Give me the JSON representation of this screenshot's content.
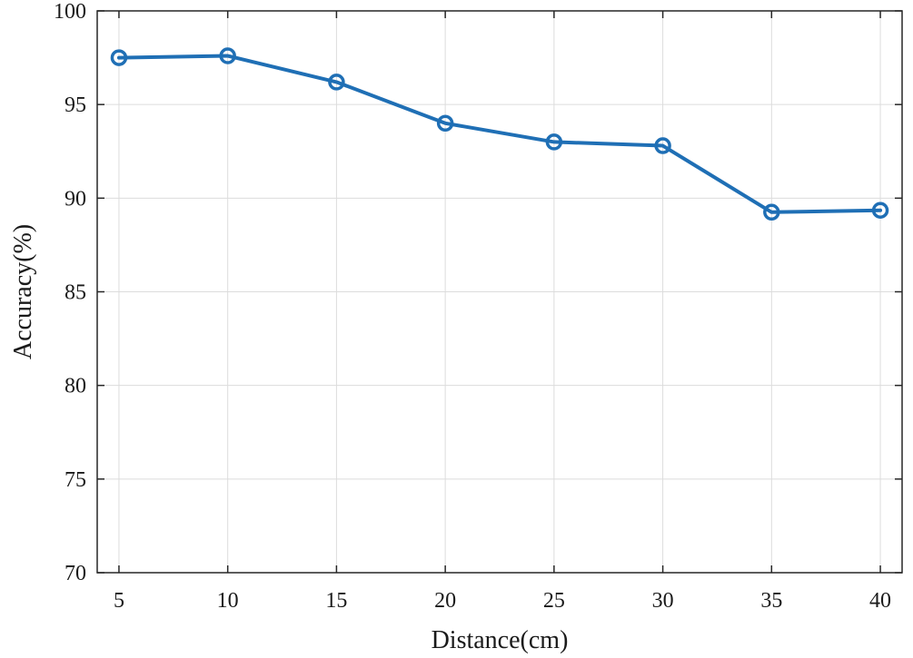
{
  "chart_data": {
    "type": "line",
    "xlabel": "Distance(cm)",
    "ylabel": "Accuracy(%)",
    "x": [
      5,
      10,
      15,
      20,
      25,
      30,
      35,
      40
    ],
    "xlim": [
      4,
      41
    ],
    "ylim": [
      70,
      100
    ],
    "xticks": [
      5,
      10,
      15,
      20,
      25,
      30,
      35,
      40
    ],
    "yticks": [
      70,
      75,
      80,
      85,
      90,
      95,
      100
    ],
    "grid": true,
    "series": [
      {
        "values": [
          97.5,
          97.6,
          96.2,
          94.0,
          93.0,
          92.8,
          89.25,
          89.35
        ],
        "color": "#1f6fb5",
        "marker": "circle"
      }
    ]
  }
}
